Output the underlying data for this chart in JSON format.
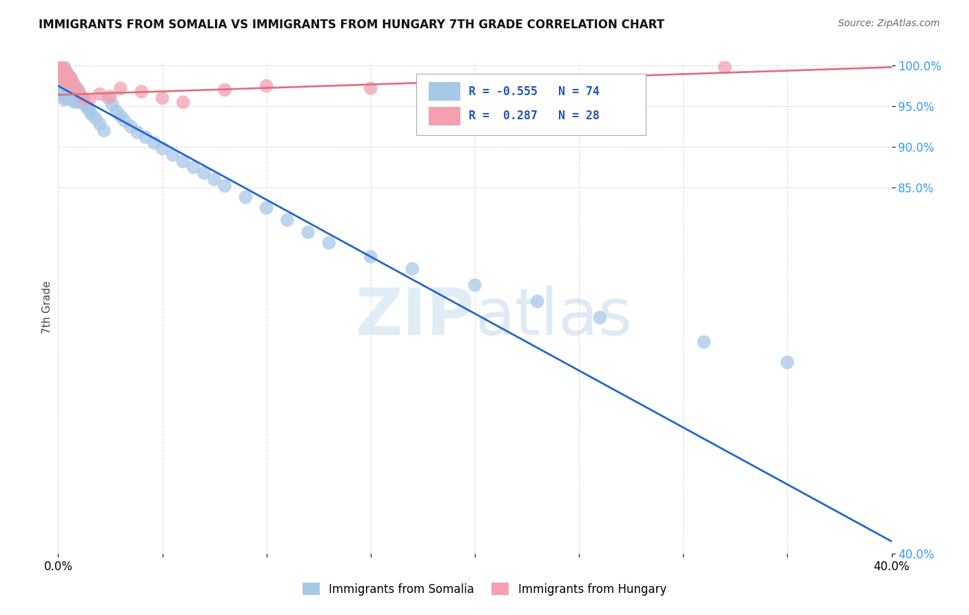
{
  "title": "IMMIGRANTS FROM SOMALIA VS IMMIGRANTS FROM HUNGARY 7TH GRADE CORRELATION CHART",
  "source": "Source: ZipAtlas.com",
  "ylabel": "7th Grade",
  "xlim": [
    0.0,
    0.4
  ],
  "ylim": [
    0.4,
    1.005
  ],
  "ytick_values": [
    0.4,
    0.85,
    0.9,
    0.95,
    1.0
  ],
  "r_somalia": -0.555,
  "n_somalia": 74,
  "r_hungary": 0.287,
  "n_hungary": 28,
  "somalia_color": "#a8c8e8",
  "hungary_color": "#f4a0b0",
  "trend_somalia_color": "#2266cc",
  "trend_hungary_color": "#e07080",
  "somalia_x": [
    0.001,
    0.001,
    0.002,
    0.002,
    0.002,
    0.002,
    0.002,
    0.003,
    0.003,
    0.003,
    0.003,
    0.003,
    0.003,
    0.003,
    0.004,
    0.004,
    0.004,
    0.004,
    0.004,
    0.005,
    0.005,
    0.005,
    0.005,
    0.006,
    0.006,
    0.006,
    0.006,
    0.007,
    0.007,
    0.007,
    0.008,
    0.008,
    0.008,
    0.009,
    0.009,
    0.01,
    0.01,
    0.011,
    0.012,
    0.013,
    0.014,
    0.015,
    0.016,
    0.018,
    0.02,
    0.022,
    0.024,
    0.026,
    0.028,
    0.03,
    0.032,
    0.035,
    0.038,
    0.042,
    0.046,
    0.05,
    0.055,
    0.06,
    0.065,
    0.07,
    0.075,
    0.08,
    0.09,
    0.1,
    0.11,
    0.12,
    0.13,
    0.15,
    0.17,
    0.2,
    0.23,
    0.26,
    0.31,
    0.35
  ],
  "somalia_y": [
    0.985,
    0.972,
    0.998,
    0.99,
    0.985,
    0.972,
    0.965,
    0.998,
    0.992,
    0.985,
    0.978,
    0.972,
    0.965,
    0.958,
    0.992,
    0.985,
    0.975,
    0.968,
    0.96,
    0.988,
    0.98,
    0.972,
    0.962,
    0.985,
    0.978,
    0.97,
    0.96,
    0.978,
    0.968,
    0.958,
    0.975,
    0.965,
    0.955,
    0.972,
    0.96,
    0.968,
    0.955,
    0.96,
    0.958,
    0.952,
    0.948,
    0.945,
    0.94,
    0.935,
    0.928,
    0.92,
    0.96,
    0.952,
    0.944,
    0.938,
    0.932,
    0.925,
    0.918,
    0.912,
    0.905,
    0.898,
    0.89,
    0.882,
    0.875,
    0.868,
    0.86,
    0.852,
    0.838,
    0.825,
    0.81,
    0.795,
    0.782,
    0.765,
    0.75,
    0.73,
    0.71,
    0.69,
    0.66,
    0.635
  ],
  "hungary_x": [
    0.001,
    0.001,
    0.002,
    0.002,
    0.002,
    0.003,
    0.003,
    0.003,
    0.004,
    0.004,
    0.005,
    0.005,
    0.006,
    0.007,
    0.008,
    0.01,
    0.012,
    0.015,
    0.02,
    0.025,
    0.03,
    0.04,
    0.05,
    0.06,
    0.08,
    0.1,
    0.15,
    0.32
  ],
  "hungary_y": [
    0.998,
    0.99,
    0.998,
    0.992,
    0.985,
    0.995,
    0.99,
    0.982,
    0.99,
    0.982,
    0.988,
    0.978,
    0.985,
    0.98,
    0.975,
    0.968,
    0.96,
    0.958,
    0.965,
    0.962,
    0.972,
    0.968,
    0.96,
    0.955,
    0.97,
    0.975,
    0.972,
    0.998
  ],
  "trend_somalia_x0": 0.0,
  "trend_somalia_y0": 0.975,
  "trend_somalia_x1": 0.4,
  "trend_somalia_y1": 0.415,
  "trend_hungary_x0": 0.0,
  "trend_hungary_y0": 0.964,
  "trend_hungary_x1": 0.4,
  "trend_hungary_y1": 0.998,
  "watermark_zip": "ZIP",
  "watermark_atlas": "atlas",
  "background_color": "#ffffff",
  "grid_color": "#dddddd"
}
